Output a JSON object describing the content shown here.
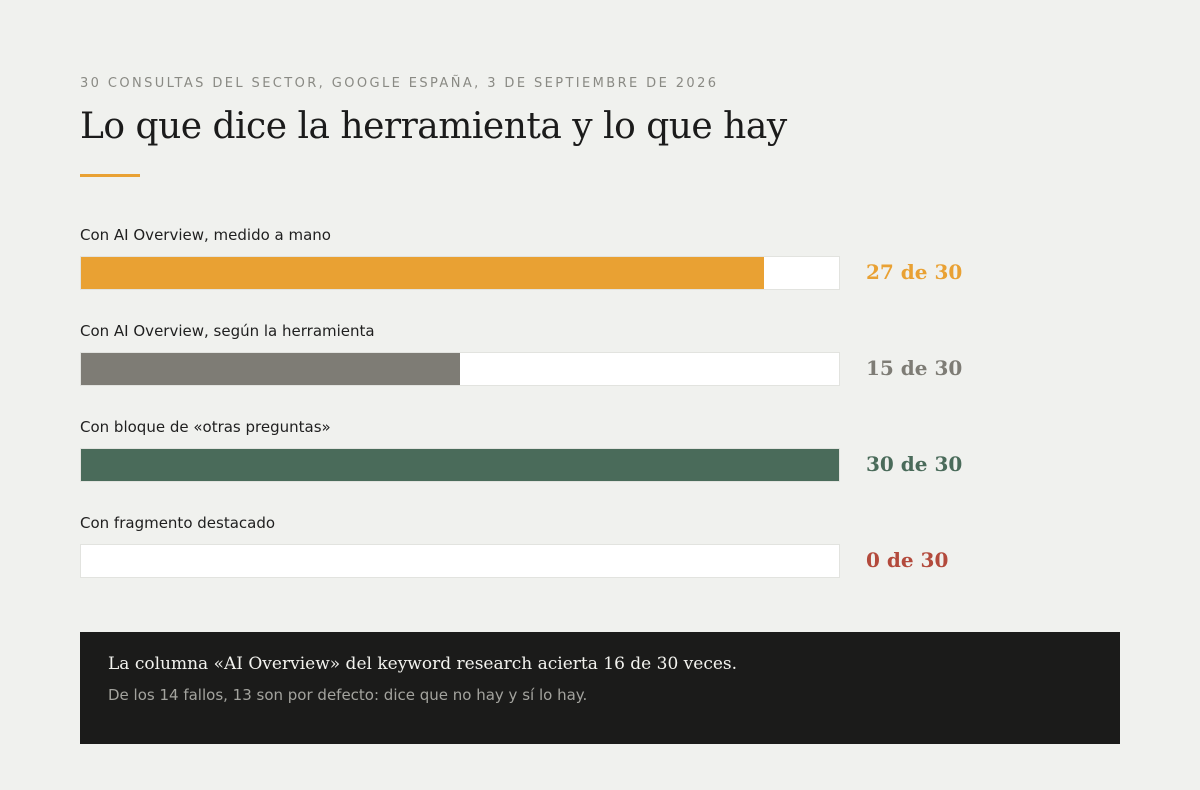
{
  "header": {
    "kicker": "30 consultas del sector, Google España, 3 de septiembre de 2026",
    "title": "Lo que dice la herramienta y lo que hay",
    "accent_color": "#e9a133"
  },
  "chart_data": {
    "type": "bar",
    "orientation": "horizontal",
    "max": 30,
    "categories": [
      "Con AI Overview, medido a mano",
      "Con AI Overview, según la herramienta",
      "Con bloque de «otras preguntas»",
      "Con fragmento destacado"
    ],
    "values": [
      27,
      15,
      30,
      0
    ],
    "value_labels": [
      "27 de 30",
      "15 de 30",
      "30 de 30",
      "0 de 30"
    ],
    "colors": [
      "#e9a133",
      "#7e7c75",
      "#4a6b5a",
      "#c0c0bc"
    ],
    "label_colors": [
      "#e9a133",
      "#7e7c75",
      "#4a6b5a",
      "#b34a3c"
    ]
  },
  "note": {
    "main": "La columna «AI Overview» del keyword research acierta 16 de 30 veces.",
    "sub": "De los 14 fallos, 13 son por defecto: dice que no hay y sí lo hay."
  }
}
